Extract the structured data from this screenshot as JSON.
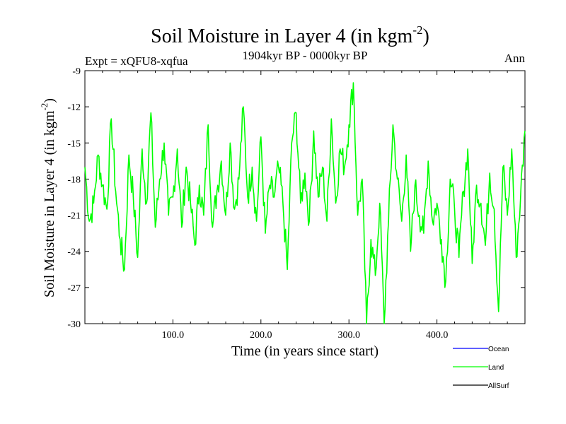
{
  "chart_data": {
    "type": "line",
    "title": "Soil Moisture in Layer 4 (in kgm",
    "title_sup": "-2",
    "title_close": ")",
    "subtitle_left": "Expt = xQFU8-xqfua",
    "subtitle_center": "1904kyr BP - 0000kyr BP",
    "subtitle_right": "Ann",
    "xlabel": "Time (in years since start)",
    "ylabel": "Soil Moisture in Layer 4 (in kgm",
    "ylabel_sup": "-2",
    "ylabel_close": ")",
    "xlim": [
      0,
      500
    ],
    "ylim": [
      -30,
      -9
    ],
    "x_ticks": [
      100,
      200,
      300,
      400
    ],
    "x_tick_labels": [
      "100.0",
      "200.0",
      "300.0",
      "400.0"
    ],
    "y_ticks": [
      -9,
      -12,
      -15,
      -18,
      -21,
      -24,
      -27,
      -30
    ],
    "y_tick_labels": [
      "-9",
      "-12",
      "-15",
      "-18",
      "-21",
      "-24",
      "-27",
      "-30"
    ],
    "legend": [
      {
        "name": "Ocean",
        "color": "#0000ff"
      },
      {
        "name": "Land",
        "color": "#00ff00"
      },
      {
        "name": "AllSurf",
        "color": "#000000"
      }
    ],
    "series": [
      {
        "name": "Land",
        "color": "#00ff00",
        "x": [
          0,
          5,
          10,
          15,
          20,
          25,
          30,
          35,
          40,
          45,
          50,
          55,
          60,
          65,
          70,
          75,
          80,
          85,
          90,
          95,
          100,
          105,
          110,
          115,
          120,
          125,
          130,
          135,
          140,
          145,
          150,
          155,
          160,
          165,
          170,
          175,
          180,
          185,
          190,
          195,
          200,
          205,
          210,
          215,
          220,
          225,
          230,
          235,
          240,
          245,
          250,
          255,
          260,
          265,
          270,
          275,
          280,
          285,
          290,
          295,
          300,
          305,
          310,
          315,
          320,
          325,
          330,
          335,
          340,
          345,
          350,
          355,
          360,
          365,
          370,
          375,
          380,
          385,
          390,
          395,
          400,
          405,
          410,
          415,
          420,
          425,
          430,
          435,
          440,
          445,
          450,
          455,
          460,
          465,
          470,
          475,
          480,
          485,
          490,
          495,
          500
        ],
        "values": [
          -17.0,
          -21.5,
          -20.0,
          -16.0,
          -18.5,
          -20.5,
          -13.0,
          -19.0,
          -23.0,
          -25.5,
          -16.0,
          -19.5,
          -24.5,
          -15.5,
          -20.0,
          -12.5,
          -22.0,
          -18.0,
          -15.0,
          -21.0,
          -19.5,
          -15.5,
          -22.0,
          -17.0,
          -20.0,
          -23.5,
          -18.5,
          -21.0,
          -13.5,
          -22.0,
          -19.0,
          -16.5,
          -21.0,
          -15.0,
          -20.5,
          -18.0,
          -12.0,
          -19.5,
          -17.0,
          -21.5,
          -14.5,
          -22.5,
          -18.5,
          -19.5,
          -17.0,
          -20.0,
          -25.5,
          -15.0,
          -12.5,
          -20.0,
          -17.5,
          -21.5,
          -14.0,
          -19.5,
          -17.0,
          -21.5,
          -13.0,
          -20.0,
          -15.5,
          -17.0,
          -13.5,
          -10.0,
          -21.0,
          -18.0,
          -30.0,
          -23.0,
          -26.0,
          -20.0,
          -30.0,
          -21.5,
          -13.5,
          -18.0,
          -21.5,
          -16.0,
          -24.0,
          -18.5,
          -21.0,
          -22.5,
          -16.5,
          -21.5,
          -20.0,
          -23.0,
          -26.5,
          -18.0,
          -20.5,
          -24.5,
          -19.0,
          -15.5,
          -25.0,
          -18.5,
          -20.0,
          -23.5,
          -17.5,
          -20.5,
          -29.0,
          -17.0,
          -21.0,
          -15.5,
          -24.5,
          -19.5,
          -14.0
        ]
      }
    ]
  }
}
